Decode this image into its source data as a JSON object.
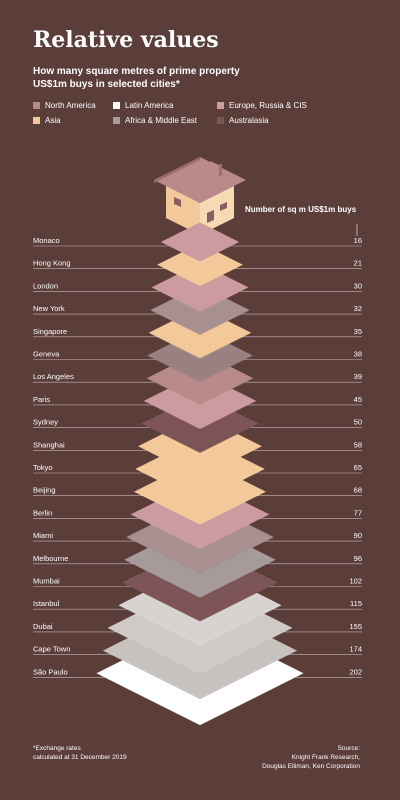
{
  "title": "Relative values",
  "subtitle_line1": "How many square metres of prime property",
  "subtitle_line2": "US$1m buys in selected cities*",
  "legend": [
    {
      "label": "North America",
      "color": "#b98a8a"
    },
    {
      "label": "Latin America",
      "color": "#ffffff"
    },
    {
      "label": "Europe, Russia & CIS",
      "color": "#cc9ba0"
    },
    {
      "label": "Asia",
      "color": "#f3c99a"
    },
    {
      "label": "Africa & Middle East",
      "color": "#a69a9a"
    },
    {
      "label": "Australasia",
      "color": "#7e5557"
    }
  ],
  "axis_title": "Number of sq m US$1m buys",
  "footnote_line1": "*Exchange rates",
  "footnote_line2": "calculated at 31 December 2019",
  "source_line1": "Source:",
  "source_line2": "Knight Frank Research,",
  "source_line3": "Douglas Elliman, Ken Corporation",
  "chart_data": {
    "type": "bar",
    "title": "Relative values",
    "ylabel": "Number of sq m US$1m buys",
    "categories": [
      "Monaco",
      "Hong Kong",
      "London",
      "New York",
      "Singapore",
      "Geneva",
      "Los Angeles",
      "Paris",
      "Sydney",
      "Shanghai",
      "Tokyo",
      "Beijing",
      "Berlin",
      "Miami",
      "Melbourne",
      "Mumbai",
      "Istanbul",
      "Dubai",
      "Cape Town",
      "São Paulo"
    ],
    "values": [
      16,
      21,
      30,
      32,
      35,
      38,
      39,
      45,
      50,
      58,
      65,
      68,
      77,
      90,
      96,
      102,
      115,
      155,
      174,
      202
    ],
    "regions": [
      "Europe, Russia & CIS",
      "Asia",
      "Europe, Russia & CIS",
      "North America",
      "Asia",
      "Europe, Russia & CIS",
      "North America",
      "Europe, Russia & CIS",
      "Australasia",
      "Asia",
      "Asia",
      "Asia",
      "Europe, Russia & CIS",
      "North America",
      "Australasia",
      "Asia",
      "Europe, Russia & CIS",
      "Africa & Middle East",
      "Africa & Middle East",
      "Latin America"
    ],
    "colors": [
      "#cc9ba0",
      "#f3c99a",
      "#cc9ba0",
      "#a89090",
      "#f3c99a",
      "#9a8080",
      "#b98a8a",
      "#cc9ba0",
      "#7e5557",
      "#f3c99a",
      "#f3c99a",
      "#f3c99a",
      "#cc9ba0",
      "#a89090",
      "#a69a9a",
      "#7e5557",
      "#d8d3d0",
      "#d0cac6",
      "#c8c2bf",
      "#ffffff"
    ]
  }
}
